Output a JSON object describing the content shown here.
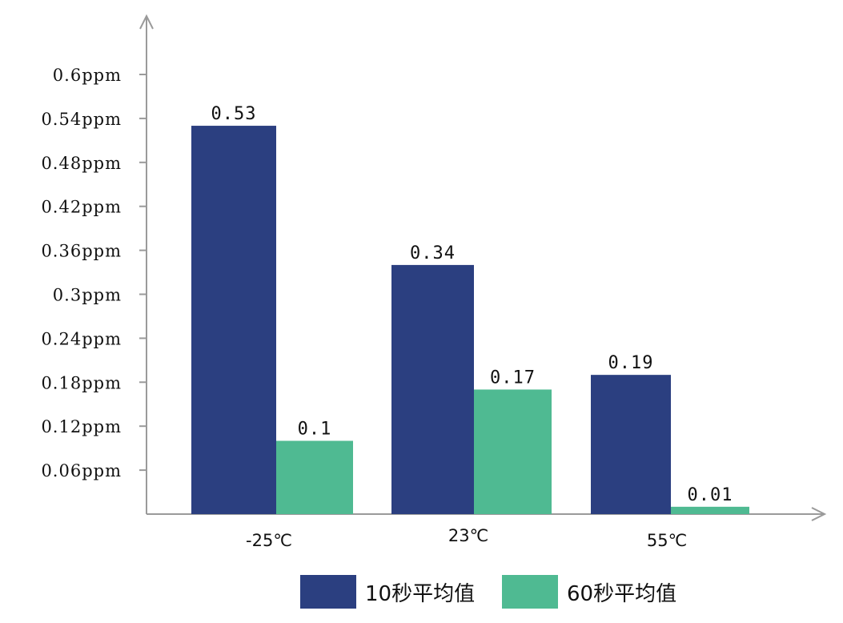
{
  "chart_data": {
    "type": "bar",
    "categories": [
      "-25℃",
      "23℃",
      "55℃"
    ],
    "series": [
      {
        "name": "10秒平均值",
        "values": [
          0.53,
          0.34,
          0.19
        ],
        "color": "#2b3f80"
      },
      {
        "name": "60秒平均值",
        "values": [
          0.1,
          0.17,
          0.01
        ],
        "color": "#4fba92"
      }
    ],
    "value_labels": [
      [
        "0.53",
        "0.34",
        "0.19"
      ],
      [
        "0.1",
        "0.17",
        "0.01"
      ]
    ],
    "y_ticks": [
      0.06,
      0.12,
      0.18,
      0.24,
      0.3,
      0.36,
      0.42,
      0.48,
      0.54,
      0.6
    ],
    "y_tick_labels": [
      "0.06ppm",
      "0.12ppm",
      "0.18ppm",
      "0.24ppm",
      "0.3ppm",
      "0.36ppm",
      "0.42ppm",
      "0.48ppm",
      "0.54ppm",
      "0.6ppm"
    ],
    "ylim": [
      0,
      0.6
    ],
    "title": "",
    "xlabel": "",
    "ylabel": "",
    "grid": false,
    "legend_position": "bottom-center",
    "axis_color": "#9a9a9a"
  }
}
